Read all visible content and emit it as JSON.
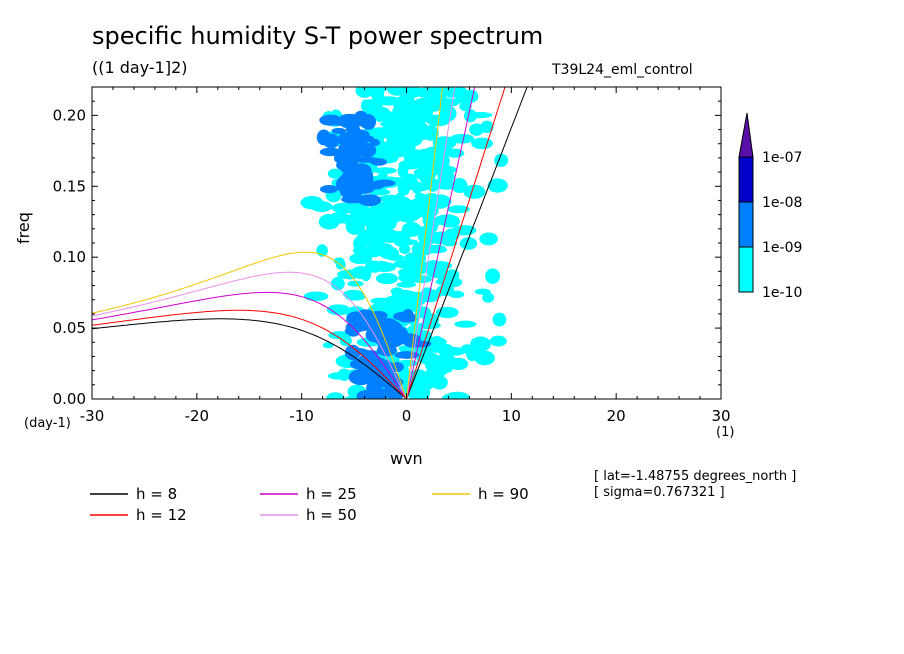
{
  "chart_data": {
    "type": "heatmap",
    "title": "specific humidity S-T power spectrum",
    "subtitle": "((1 day-1]2)",
    "run_label": "T39L24_eml_control",
    "xlabel": "wvn",
    "ylabel": "freq",
    "x_unit": "(1)",
    "y_unit": "(day-1)",
    "xlim": [
      -30,
      30
    ],
    "ylim": [
      0,
      0.22
    ],
    "x_ticks": [
      "-30",
      "-20",
      "-10",
      "0",
      "10",
      "20",
      "30"
    ],
    "y_ticks": [
      "0.00",
      "0.05",
      "0.10",
      "0.15",
      "0.20"
    ],
    "colorbar": {
      "levels": [
        "1e-10",
        "1e-09",
        "1e-08",
        "1e-07"
      ],
      "colors": [
        "#00ffff",
        "#0080ff",
        "#0000c8",
        "#5a10a8"
      ]
    },
    "contour_bands": [
      {
        "x": 0,
        "y_min": 0,
        "y_max": 0.22,
        "half_width": 9,
        "level": 0
      },
      {
        "x": -2,
        "y_min": 0,
        "y_max": 0.06,
        "half_width": 4,
        "level": 1
      },
      {
        "x": -5,
        "y_min": 0.14,
        "y_max": 0.2,
        "half_width": 3,
        "level": 1
      }
    ],
    "series": [
      {
        "name": "h =  8",
        "color": "#000000",
        "n": 8
      },
      {
        "name": "h = 12",
        "color": "#ff0000",
        "n": 12
      },
      {
        "name": "h = 25",
        "color": "#d000d0",
        "n": 25
      },
      {
        "name": "h = 50",
        "color": "#e890e8",
        "n": 50
      },
      {
        "name": "h = 90",
        "color": "#f0c800",
        "n": 90
      }
    ],
    "annotations": [
      "[ lat=-1.48755 degrees_north ]",
      "[ sigma=0.767321 ]"
    ]
  }
}
